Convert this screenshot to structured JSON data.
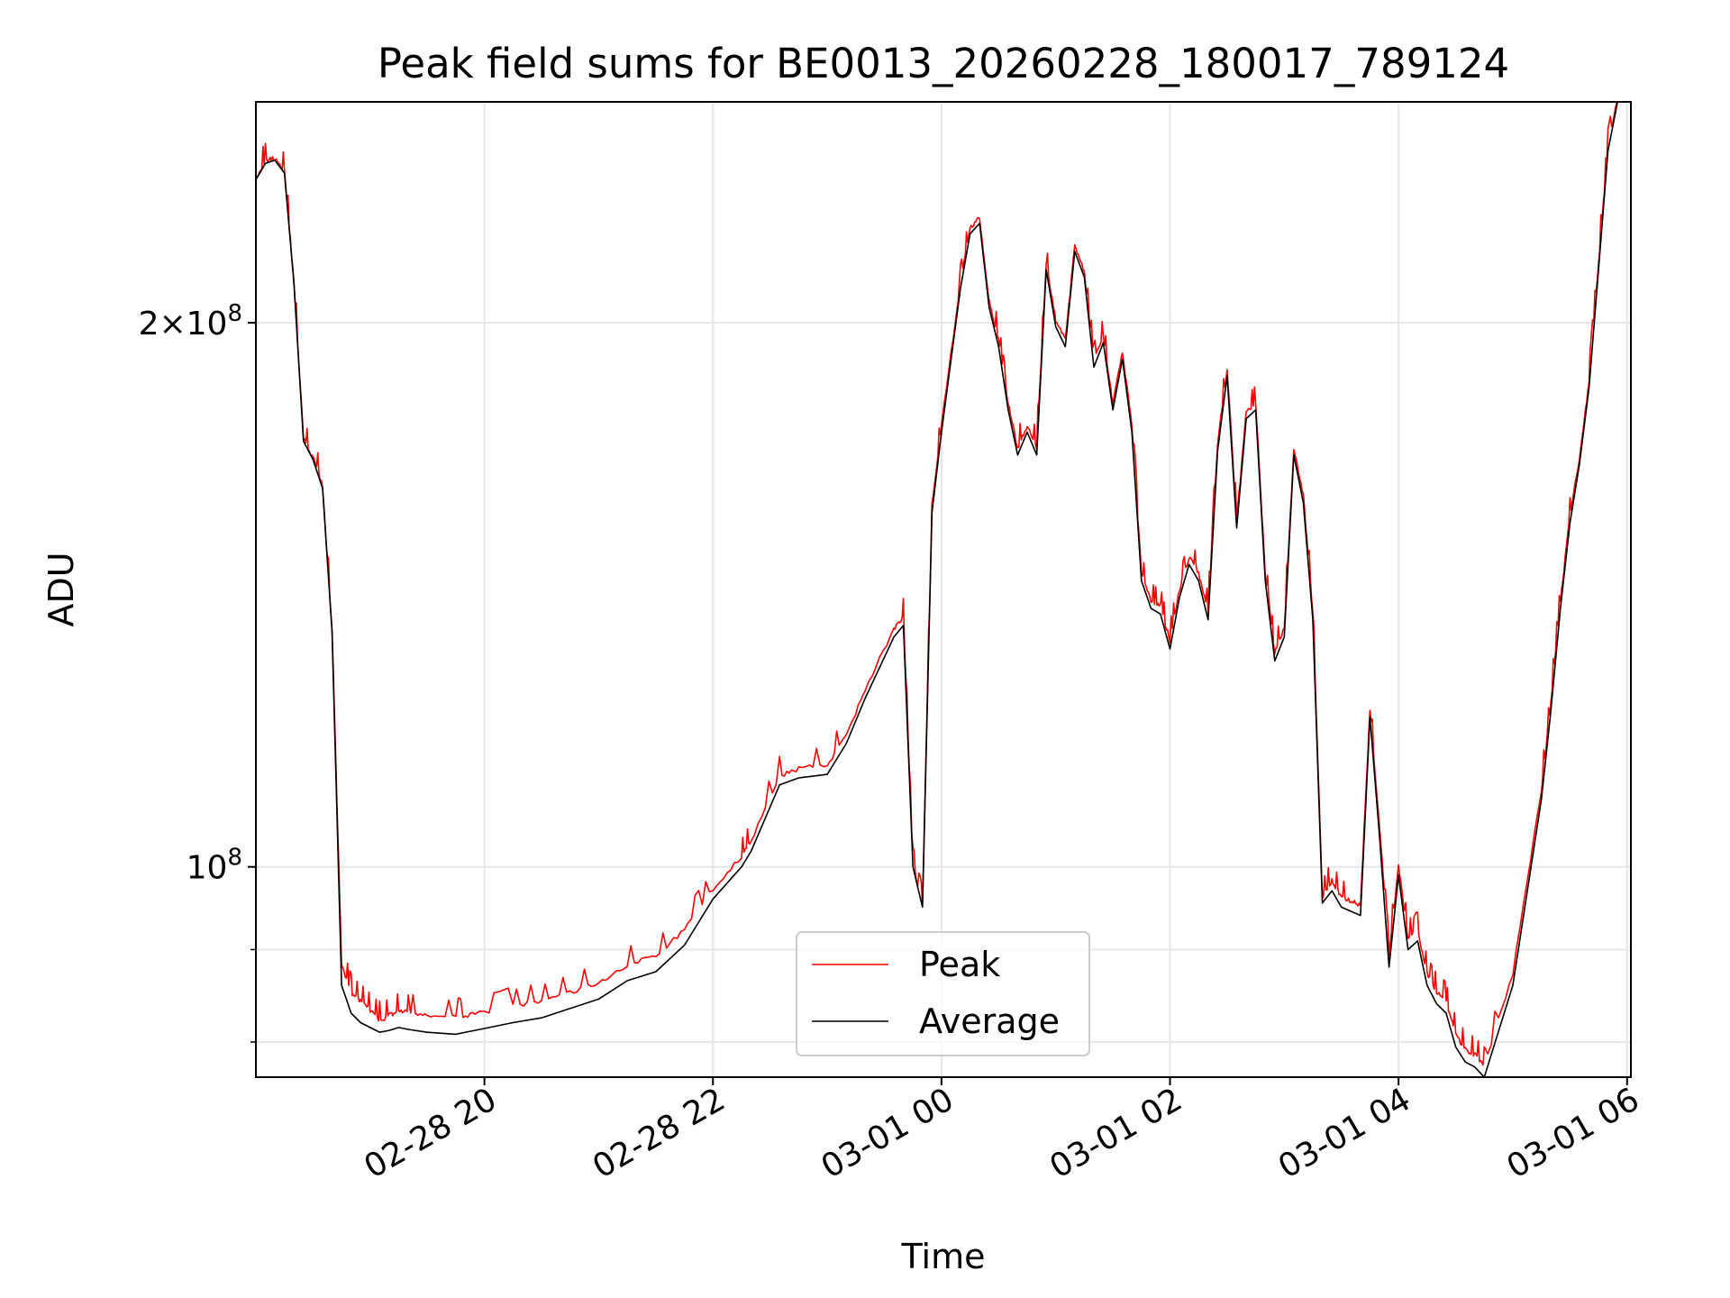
{
  "chart_data": {
    "type": "line",
    "title": "Peak field sums for BE0013_20260228_180017_789124",
    "xlabel": "Time",
    "ylabel": "ADU",
    "y_scale": "log",
    "ylim": [
      76500000,
      265000000
    ],
    "xlim": [
      "2026-02-28 18:00",
      "2026-03-01 06:02"
    ],
    "grid": true,
    "legend_position": "lower center",
    "x_ticks": [
      {
        "value": "2026-02-28 20:00",
        "label": "02-28 20"
      },
      {
        "value": "2026-02-28 22:00",
        "label": "02-28 22"
      },
      {
        "value": "2026-03-01 00:00",
        "label": "03-01 00"
      },
      {
        "value": "2026-03-01 02:00",
        "label": "03-01 02"
      },
      {
        "value": "2026-03-01 04:00",
        "label": "03-01 04"
      },
      {
        "value": "2026-03-01 06:00",
        "label": "03-01 06"
      }
    ],
    "y_ticks": [
      {
        "value": 100000000,
        "mantissa": "",
        "exponent": "8",
        "major": true
      },
      {
        "value": 200000000,
        "mantissa": "2",
        "exponent": "8",
        "major": true
      },
      {
        "value": 80000000,
        "major": false
      },
      {
        "value": 90000000,
        "major": false
      }
    ],
    "colors": {
      "peak": "#ff0000",
      "average": "#000000",
      "grid": "#e6e6e6"
    },
    "series": [
      {
        "name": "Peak",
        "color": "#ff0000",
        "noise_note": "tracks Average with small upward spikes",
        "x": [
          "2026-02-28 18:00",
          "2026-02-28 18:05",
          "2026-02-28 18:10",
          "2026-02-28 18:15",
          "2026-02-28 18:20",
          "2026-02-28 18:25",
          "2026-02-28 18:30",
          "2026-02-28 18:35",
          "2026-02-28 18:40",
          "2026-02-28 18:45",
          "2026-02-28 18:50",
          "2026-02-28 18:55",
          "2026-02-28 19:00",
          "2026-02-28 19:05",
          "2026-02-28 19:10",
          "2026-02-28 19:15",
          "2026-02-28 19:20",
          "2026-02-28 19:30",
          "2026-02-28 19:45",
          "2026-02-28 19:55",
          "2026-02-28 20:15",
          "2026-02-28 20:30",
          "2026-02-28 20:45",
          "2026-02-28 21:00",
          "2026-02-28 21:15",
          "2026-02-28 21:30",
          "2026-02-28 21:45",
          "2026-02-28 22:00",
          "2026-02-28 22:15",
          "2026-02-28 22:20",
          "2026-02-28 22:35",
          "2026-02-28 22:45",
          "2026-02-28 23:00",
          "2026-02-28 23:10",
          "2026-02-28 23:20",
          "2026-02-28 23:35",
          "2026-02-28 23:40",
          "2026-02-28 23:45",
          "2026-02-28 23:50",
          "2026-02-28 23:55",
          "2026-03-01 00:00",
          "2026-03-01 00:10",
          "2026-03-01 00:15",
          "2026-03-01 00:20",
          "2026-03-01 00:25",
          "2026-03-01 00:30",
          "2026-03-01 00:35",
          "2026-03-01 00:40",
          "2026-03-01 00:45",
          "2026-03-01 00:50",
          "2026-03-01 00:55",
          "2026-03-01 01:00",
          "2026-03-01 01:05",
          "2026-03-01 01:10",
          "2026-03-01 01:15",
          "2026-03-01 01:20",
          "2026-03-01 01:25",
          "2026-03-01 01:30",
          "2026-03-01 01:35",
          "2026-03-01 01:40",
          "2026-03-01 01:45",
          "2026-03-01 01:50",
          "2026-03-01 01:55",
          "2026-03-01 02:00",
          "2026-03-01 02:05",
          "2026-03-01 02:10",
          "2026-03-01 02:15",
          "2026-03-01 02:20",
          "2026-03-01 02:25",
          "2026-03-01 02:30",
          "2026-03-01 02:35",
          "2026-03-01 02:40",
          "2026-03-01 02:45",
          "2026-03-01 02:50",
          "2026-03-01 02:55",
          "2026-03-01 03:00",
          "2026-03-01 03:05",
          "2026-03-01 03:10",
          "2026-03-01 03:15",
          "2026-03-01 03:20",
          "2026-03-01 03:25",
          "2026-03-01 03:30",
          "2026-03-01 03:35",
          "2026-03-01 03:40",
          "2026-03-01 03:45",
          "2026-03-01 03:50",
          "2026-03-01 03:55",
          "2026-03-01 04:00",
          "2026-03-01 04:05",
          "2026-03-01 04:10",
          "2026-03-01 04:15",
          "2026-03-01 04:20",
          "2026-03-01 04:25",
          "2026-03-01 04:30",
          "2026-03-01 04:35",
          "2026-03-01 04:40",
          "2026-03-01 04:45",
          "2026-03-01 05:00",
          "2026-03-01 05:15",
          "2026-03-01 05:20",
          "2026-03-01 05:25",
          "2026-03-01 05:30",
          "2026-03-01 05:35",
          "2026-03-01 05:40",
          "2026-03-01 05:45",
          "2026-03-01 05:50",
          "2026-03-01 05:55",
          "2026-03-01 06:00"
        ],
        "values": [
          240000000,
          245000000,
          246000000,
          242000000,
          210000000,
          172000000,
          168000000,
          162000000,
          135000000,
          88000000,
          85000000,
          84000000,
          83000000,
          82000000,
          82500000,
          83000000,
          82800000,
          82500000,
          82300000,
          82700000,
          83500000,
          84000000,
          85000000,
          86000000,
          88000000,
          89000000,
          92000000,
          97000000,
          101000000,
          103000000,
          112000000,
          113000000,
          113500000,
          118000000,
          125000000,
          135000000,
          137000000,
          100000000,
          95000000,
          158000000,
          175000000,
          210000000,
          225000000,
          228000000,
          205000000,
          195000000,
          180000000,
          170000000,
          175000000,
          170000000,
          215000000,
          200000000,
          195000000,
          220000000,
          213000000,
          190000000,
          196000000,
          180000000,
          192000000,
          175000000,
          145000000,
          140000000,
          139000000,
          133000000,
          142000000,
          148000000,
          145000000,
          138000000,
          171000000,
          188000000,
          155000000,
          178000000,
          180000000,
          145000000,
          131000000,
          135000000,
          170000000,
          160000000,
          138000000,
          96000000,
          98000000,
          96000000,
          95500000,
          95000000,
          122000000,
          105000000,
          89000000,
          100000000,
          91000000,
          92000000,
          87000000,
          85000000,
          84000000,
          80500000,
          79000000,
          78500000,
          77500000,
          87000000,
          110000000,
          123000000,
          140000000,
          156000000,
          168000000,
          185000000,
          215000000,
          250000000,
          265000000,
          265000000
        ]
      },
      {
        "name": "Average",
        "color": "#000000",
        "x": [
          "2026-02-28 18:00",
          "2026-02-28 18:05",
          "2026-02-28 18:10",
          "2026-02-28 18:15",
          "2026-02-28 18:20",
          "2026-02-28 18:25",
          "2026-02-28 18:30",
          "2026-02-28 18:35",
          "2026-02-28 18:40",
          "2026-02-28 18:45",
          "2026-02-28 18:50",
          "2026-02-28 18:55",
          "2026-02-28 19:00",
          "2026-02-28 19:05",
          "2026-02-28 19:10",
          "2026-02-28 19:15",
          "2026-02-28 19:20",
          "2026-02-28 19:30",
          "2026-02-28 19:45",
          "2026-02-28 19:55",
          "2026-02-28 20:15",
          "2026-02-28 20:30",
          "2026-02-28 20:45",
          "2026-02-28 21:00",
          "2026-02-28 21:15",
          "2026-02-28 21:30",
          "2026-02-28 21:45",
          "2026-02-28 22:00",
          "2026-02-28 22:15",
          "2026-02-28 22:20",
          "2026-02-28 22:35",
          "2026-02-28 22:45",
          "2026-02-28 23:00",
          "2026-02-28 23:10",
          "2026-02-28 23:20",
          "2026-02-28 23:35",
          "2026-02-28 23:40",
          "2026-02-28 23:45",
          "2026-02-28 23:50",
          "2026-02-28 23:55",
          "2026-03-01 00:00",
          "2026-03-01 00:10",
          "2026-03-01 00:15",
          "2026-03-01 00:20",
          "2026-03-01 00:25",
          "2026-03-01 00:30",
          "2026-03-01 00:35",
          "2026-03-01 00:40",
          "2026-03-01 00:45",
          "2026-03-01 00:50",
          "2026-03-01 00:55",
          "2026-03-01 01:00",
          "2026-03-01 01:05",
          "2026-03-01 01:10",
          "2026-03-01 01:15",
          "2026-03-01 01:20",
          "2026-03-01 01:25",
          "2026-03-01 01:30",
          "2026-03-01 01:35",
          "2026-03-01 01:40",
          "2026-03-01 01:45",
          "2026-03-01 01:50",
          "2026-03-01 01:55",
          "2026-03-01 02:00",
          "2026-03-01 02:05",
          "2026-03-01 02:10",
          "2026-03-01 02:15",
          "2026-03-01 02:20",
          "2026-03-01 02:25",
          "2026-03-01 02:30",
          "2026-03-01 02:35",
          "2026-03-01 02:40",
          "2026-03-01 02:45",
          "2026-03-01 02:50",
          "2026-03-01 02:55",
          "2026-03-01 03:00",
          "2026-03-01 03:05",
          "2026-03-01 03:10",
          "2026-03-01 03:15",
          "2026-03-01 03:20",
          "2026-03-01 03:25",
          "2026-03-01 03:30",
          "2026-03-01 03:35",
          "2026-03-01 03:40",
          "2026-03-01 03:45",
          "2026-03-01 03:50",
          "2026-03-01 03:55",
          "2026-03-01 04:00",
          "2026-03-01 04:05",
          "2026-03-01 04:10",
          "2026-03-01 04:15",
          "2026-03-01 04:20",
          "2026-03-01 04:25",
          "2026-03-01 04:30",
          "2026-03-01 04:35",
          "2026-03-01 04:40",
          "2026-03-01 04:45",
          "2026-03-01 05:00",
          "2026-03-01 05:15",
          "2026-03-01 05:20",
          "2026-03-01 05:25",
          "2026-03-01 05:30",
          "2026-03-01 05:35",
          "2026-03-01 05:40",
          "2026-03-01 05:45",
          "2026-03-01 05:50",
          "2026-03-01 05:55",
          "2026-03-01 06:00"
        ],
        "values": [
          240000000,
          245000000,
          246000000,
          242000000,
          210000000,
          172000000,
          168000000,
          162000000,
          135000000,
          86000000,
          83000000,
          82000000,
          81500000,
          81000000,
          81200000,
          81500000,
          81300000,
          81000000,
          80800000,
          81200000,
          82000000,
          82500000,
          83500000,
          84500000,
          86500000,
          87500000,
          90500000,
          96000000,
          100000000,
          102000000,
          111000000,
          112000000,
          112500000,
          117000000,
          124000000,
          134000000,
          136000000,
          100000000,
          95000000,
          157000000,
          174000000,
          209000000,
          224000000,
          227000000,
          204000000,
          194000000,
          179000000,
          169000000,
          174000000,
          169000000,
          214000000,
          199000000,
          194000000,
          219000000,
          212000000,
          189000000,
          195000000,
          179000000,
          191000000,
          174000000,
          144000000,
          139000000,
          138000000,
          132000000,
          141000000,
          147000000,
          144000000,
          137000000,
          170000000,
          187000000,
          154000000,
          177000000,
          179000000,
          144000000,
          130000000,
          134000000,
          169000000,
          159000000,
          137000000,
          95500000,
          97000000,
          95000000,
          94500000,
          94000000,
          121000000,
          104000000,
          88000000,
          99000000,
          90000000,
          91000000,
          86000000,
          84000000,
          83000000,
          79500000,
          78000000,
          77500000,
          76500000,
          86000000,
          109000000,
          122000000,
          139000000,
          155000000,
          167000000,
          184000000,
          214000000,
          249000000,
          265000000,
          265000000
        ]
      }
    ]
  }
}
